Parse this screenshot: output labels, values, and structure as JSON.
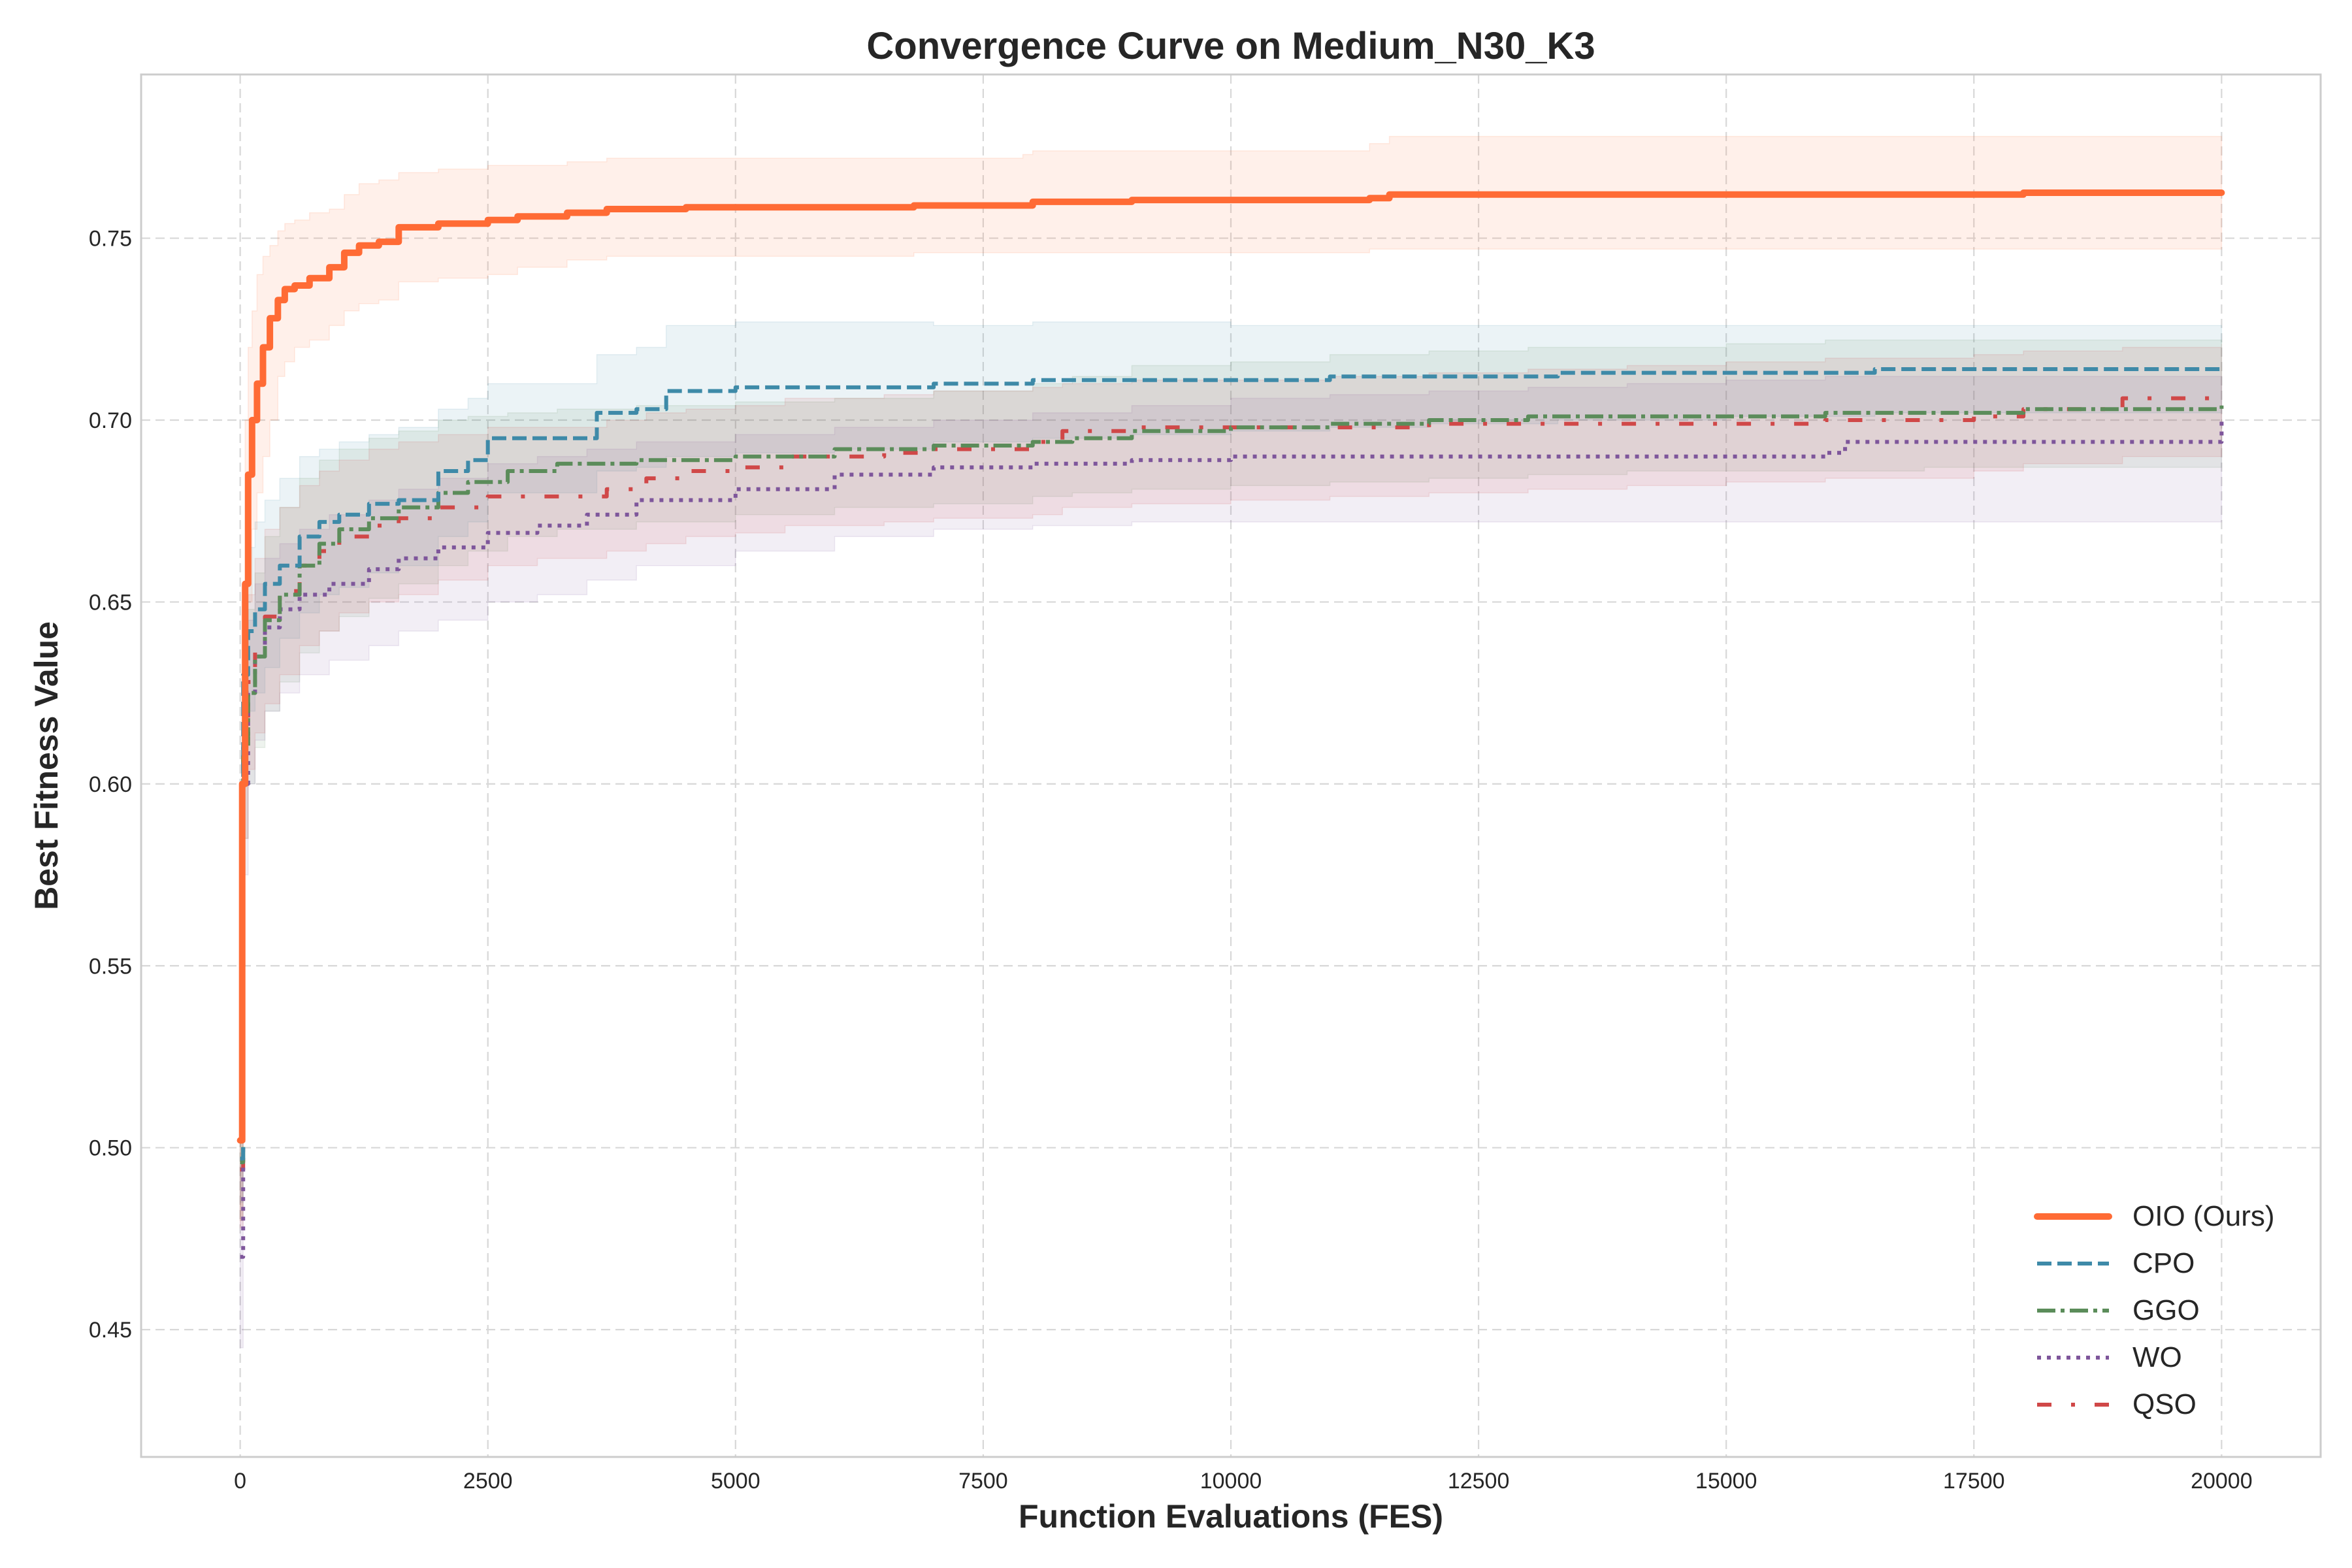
{
  "chart_data": {
    "type": "line",
    "title": "Convergence Curve on Medium_N30_K3",
    "xlabel": "Function Evaluations (FES)",
    "ylabel": "Best Fitness Value",
    "xlim": [
      -1000,
      21000
    ],
    "ylim": [
      0.415,
      0.795
    ],
    "xticks": [
      0,
      2500,
      5000,
      7500,
      10000,
      12500,
      15000,
      17500,
      20000
    ],
    "xtick_labels": [
      "0",
      "2500",
      "5000",
      "7500",
      "10000",
      "12500",
      "15000",
      "17500",
      "20000"
    ],
    "yticks": [
      0.45,
      0.5,
      0.55,
      0.6,
      0.65,
      0.7,
      0.75
    ],
    "ytick_labels": [
      "0.45",
      "0.50",
      "0.55",
      "0.60",
      "0.65",
      "0.70",
      "0.75"
    ],
    "grid": true,
    "legend_position": "lower-right",
    "series": [
      {
        "name": "OIO (Ours)",
        "color": "#FF6B35",
        "style": "solid",
        "x": [
          0,
          20,
          50,
          80,
          120,
          170,
          230,
          300,
          380,
          450,
          550,
          700,
          900,
          1050,
          1200,
          1400,
          1600,
          2000,
          2500,
          2800,
          3300,
          3700,
          4500,
          6000,
          6800,
          7900,
          8000,
          9000,
          10500,
          11400,
          11600,
          13000,
          15000,
          18000,
          20000
        ],
        "y": [
          0.502,
          0.6,
          0.655,
          0.685,
          0.7,
          0.71,
          0.72,
          0.728,
          0.733,
          0.736,
          0.737,
          0.739,
          0.742,
          0.746,
          0.748,
          0.749,
          0.753,
          0.754,
          0.755,
          0.756,
          0.757,
          0.758,
          0.7585,
          0.7585,
          0.759,
          0.759,
          0.76,
          0.7605,
          0.7605,
          0.761,
          0.762,
          0.762,
          0.762,
          0.7625,
          0.7625
        ],
        "band_upper": [
          0.52,
          0.65,
          0.7,
          0.72,
          0.73,
          0.74,
          0.745,
          0.748,
          0.752,
          0.754,
          0.755,
          0.757,
          0.758,
          0.762,
          0.765,
          0.766,
          0.768,
          0.769,
          0.77,
          0.77,
          0.771,
          0.772,
          0.772,
          0.772,
          0.772,
          0.773,
          0.774,
          0.774,
          0.774,
          0.776,
          0.778,
          0.778,
          0.778,
          0.778,
          0.778
        ],
        "band_lower": [
          0.48,
          0.55,
          0.61,
          0.65,
          0.67,
          0.68,
          0.69,
          0.7,
          0.712,
          0.716,
          0.72,
          0.722,
          0.726,
          0.73,
          0.732,
          0.733,
          0.738,
          0.739,
          0.74,
          0.742,
          0.744,
          0.745,
          0.745,
          0.745,
          0.746,
          0.746,
          0.746,
          0.746,
          0.746,
          0.747,
          0.747,
          0.747,
          0.747,
          0.747,
          0.747
        ]
      },
      {
        "name": "CPO",
        "color": "#3E8AA8",
        "style": "dashed",
        "x": [
          0,
          30,
          80,
          150,
          250,
          400,
          600,
          800,
          1000,
          1300,
          1600,
          2000,
          2300,
          2500,
          3000,
          3600,
          4000,
          4300,
          5000,
          6000,
          7000,
          8000,
          9000,
          10000,
          11000,
          12000,
          13300,
          15000,
          16500,
          18000,
          20000
        ],
        "y": [
          0.497,
          0.63,
          0.642,
          0.648,
          0.655,
          0.66,
          0.668,
          0.672,
          0.674,
          0.677,
          0.678,
          0.686,
          0.689,
          0.695,
          0.695,
          0.702,
          0.703,
          0.708,
          0.709,
          0.709,
          0.71,
          0.711,
          0.711,
          0.711,
          0.712,
          0.712,
          0.713,
          0.713,
          0.714,
          0.714,
          0.714
        ],
        "band_upper": [
          0.51,
          0.655,
          0.665,
          0.672,
          0.678,
          0.684,
          0.69,
          0.692,
          0.694,
          0.696,
          0.698,
          0.703,
          0.706,
          0.71,
          0.71,
          0.718,
          0.72,
          0.726,
          0.727,
          0.727,
          0.726,
          0.727,
          0.727,
          0.726,
          0.726,
          0.726,
          0.726,
          0.726,
          0.726,
          0.726,
          0.726
        ],
        "band_lower": [
          0.485,
          0.605,
          0.62,
          0.625,
          0.632,
          0.64,
          0.647,
          0.652,
          0.654,
          0.658,
          0.66,
          0.668,
          0.672,
          0.68,
          0.68,
          0.686,
          0.687,
          0.69,
          0.691,
          0.692,
          0.694,
          0.695,
          0.696,
          0.697,
          0.698,
          0.699,
          0.7,
          0.701,
          0.702,
          0.702,
          0.702
        ]
      },
      {
        "name": "GGO",
        "color": "#5B8C5A",
        "style": "dashdot",
        "x": [
          0,
          30,
          80,
          150,
          250,
          400,
          600,
          800,
          1000,
          1300,
          1600,
          2000,
          2300,
          2700,
          3200,
          4000,
          5000,
          6000,
          7000,
          8000,
          8400,
          9000,
          10000,
          11000,
          12000,
          13000,
          14000,
          15000,
          16000,
          17000,
          18000,
          19000,
          20000
        ],
        "y": [
          0.496,
          0.61,
          0.625,
          0.635,
          0.645,
          0.652,
          0.66,
          0.666,
          0.67,
          0.673,
          0.676,
          0.68,
          0.683,
          0.686,
          0.688,
          0.689,
          0.69,
          0.692,
          0.693,
          0.694,
          0.695,
          0.697,
          0.698,
          0.699,
          0.7,
          0.701,
          0.701,
          0.701,
          0.702,
          0.702,
          0.703,
          0.703,
          0.704
        ],
        "band_upper": [
          0.51,
          0.635,
          0.648,
          0.658,
          0.668,
          0.676,
          0.684,
          0.689,
          0.692,
          0.695,
          0.697,
          0.7,
          0.701,
          0.702,
          0.703,
          0.704,
          0.705,
          0.706,
          0.708,
          0.71,
          0.712,
          0.715,
          0.716,
          0.718,
          0.719,
          0.72,
          0.72,
          0.721,
          0.722,
          0.722,
          0.722,
          0.722,
          0.722
        ],
        "band_lower": [
          0.48,
          0.585,
          0.6,
          0.61,
          0.62,
          0.628,
          0.636,
          0.642,
          0.646,
          0.651,
          0.655,
          0.66,
          0.664,
          0.668,
          0.67,
          0.672,
          0.674,
          0.676,
          0.677,
          0.679,
          0.68,
          0.681,
          0.682,
          0.683,
          0.684,
          0.685,
          0.686,
          0.686,
          0.686,
          0.687,
          0.687,
          0.687,
          0.687
        ]
      },
      {
        "name": "WO",
        "color": "#7E569B",
        "style": "dotted",
        "x": [
          0,
          30,
          80,
          150,
          250,
          400,
          600,
          900,
          1300,
          1600,
          2000,
          2500,
          3000,
          3500,
          4000,
          5000,
          6000,
          7000,
          8000,
          9000,
          10000,
          11000,
          12000,
          13000,
          14000,
          15000,
          16000,
          16200,
          17000,
          18000,
          19000,
          20000
        ],
        "y": [
          0.47,
          0.6,
          0.625,
          0.635,
          0.643,
          0.648,
          0.652,
          0.655,
          0.659,
          0.662,
          0.665,
          0.669,
          0.671,
          0.674,
          0.678,
          0.681,
          0.685,
          0.687,
          0.688,
          0.689,
          0.69,
          0.69,
          0.69,
          0.69,
          0.69,
          0.69,
          0.691,
          0.694,
          0.694,
          0.694,
          0.694,
          0.7
        ],
        "band_upper": [
          0.495,
          0.625,
          0.645,
          0.655,
          0.662,
          0.666,
          0.67,
          0.674,
          0.678,
          0.681,
          0.684,
          0.688,
          0.69,
          0.692,
          0.694,
          0.696,
          0.698,
          0.7,
          0.702,
          0.704,
          0.706,
          0.707,
          0.708,
          0.709,
          0.71,
          0.711,
          0.712,
          0.712,
          0.712,
          0.712,
          0.712,
          0.712
        ],
        "band_lower": [
          0.445,
          0.575,
          0.6,
          0.612,
          0.62,
          0.625,
          0.63,
          0.634,
          0.638,
          0.642,
          0.645,
          0.65,
          0.652,
          0.656,
          0.66,
          0.664,
          0.668,
          0.67,
          0.671,
          0.672,
          0.672,
          0.672,
          0.672,
          0.672,
          0.672,
          0.672,
          0.672,
          0.672,
          0.672,
          0.672,
          0.672,
          0.672
        ]
      },
      {
        "name": "QSO",
        "color": "#D04848",
        "style": "sparse-dashdot",
        "x": [
          0,
          30,
          80,
          150,
          250,
          400,
          600,
          800,
          1000,
          1300,
          1600,
          2000,
          2500,
          3000,
          3700,
          4100,
          4500,
          5000,
          5500,
          6500,
          7000,
          8000,
          8300,
          9000,
          10000,
          11000,
          12000,
          13000,
          14000,
          15000,
          16000,
          17500,
          18000,
          19000,
          20000
        ],
        "y": [
          0.494,
          0.612,
          0.628,
          0.638,
          0.646,
          0.653,
          0.66,
          0.664,
          0.668,
          0.671,
          0.673,
          0.676,
          0.679,
          0.679,
          0.681,
          0.684,
          0.686,
          0.687,
          0.69,
          0.691,
          0.692,
          0.694,
          0.697,
          0.698,
          0.698,
          0.698,
          0.699,
          0.699,
          0.699,
          0.699,
          0.7,
          0.701,
          0.703,
          0.706,
          0.707
        ],
        "band_upper": [
          0.51,
          0.64,
          0.652,
          0.662,
          0.67,
          0.676,
          0.682,
          0.686,
          0.689,
          0.692,
          0.694,
          0.696,
          0.698,
          0.698,
          0.7,
          0.702,
          0.703,
          0.704,
          0.706,
          0.707,
          0.708,
          0.709,
          0.71,
          0.711,
          0.711,
          0.712,
          0.713,
          0.714,
          0.715,
          0.716,
          0.717,
          0.718,
          0.719,
          0.72,
          0.721
        ],
        "band_lower": [
          0.478,
          0.585,
          0.604,
          0.614,
          0.622,
          0.63,
          0.638,
          0.642,
          0.647,
          0.65,
          0.652,
          0.656,
          0.66,
          0.662,
          0.664,
          0.666,
          0.668,
          0.669,
          0.671,
          0.672,
          0.673,
          0.674,
          0.676,
          0.677,
          0.678,
          0.679,
          0.68,
          0.681,
          0.682,
          0.683,
          0.684,
          0.686,
          0.688,
          0.69,
          0.692
        ]
      }
    ]
  }
}
